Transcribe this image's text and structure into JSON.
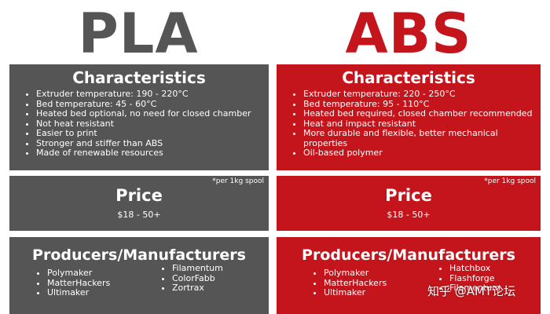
{
  "pla": {
    "title": "PLA",
    "characteristics_heading": "Characteristics",
    "characteristics": [
      "Extruder temperature: 190 - 220°C",
      "Bed temperature: 45 - 60°C",
      "Heated bed optional, no need for closed chamber",
      "Not heat resistant",
      "Easier to print",
      "Stronger and stiffer than ABS",
      "Made of renewable resources"
    ],
    "spool_note": "*per 1kg spool",
    "price_heading": "Price",
    "price_value": "$18 - 50+",
    "producers_heading": "Producers/Manufacturers",
    "producers_col1": [
      "Polymaker",
      "MatterHackers",
      "Ultimaker"
    ],
    "producers_col2": [
      "Filamentum",
      "ColorFabb",
      "Zortrax"
    ]
  },
  "abs": {
    "title": "ABS",
    "characteristics_heading": "Characteristics",
    "characteristics": [
      "Extruder temperature: 220 - 250°C",
      "Bed temperature: 95 - 110°C",
      "Heated bed required, closed chamber recommended",
      "Heat and impact resistant",
      "More durable and flexible, better mechanical properties",
      "Oil-based polymer"
    ],
    "spool_note": "*per 1kg spool",
    "price_heading": "Price",
    "price_value": "$18 - 50+",
    "producers_heading": "Producers/Manufacturers",
    "producers_col1": [
      "Polymaker",
      "MatterHackers",
      "Ultimaker"
    ],
    "producers_col2": [
      "Hatchbox",
      "Flashforge",
      "Filamentum"
    ]
  },
  "watermark": "知乎 @AMT论坛",
  "colors": {
    "pla": "#555555",
    "abs": "#c4151c"
  }
}
